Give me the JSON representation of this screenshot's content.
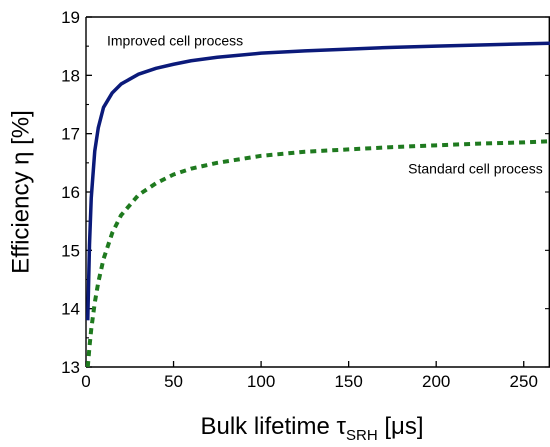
{
  "chart_data": {
    "type": "line",
    "xlabel": "Bulk lifetime τSRH [μs]",
    "ylabel": "Efficiency η [%]",
    "xlabel_parts": {
      "main": "Bulk lifetime τ",
      "subscript": "SRH",
      "unit": " [μs]"
    },
    "xlim": [
      0,
      265
    ],
    "ylim": [
      13,
      19
    ],
    "x_ticks": [
      0,
      50,
      100,
      150,
      200,
      250
    ],
    "y_ticks": [
      13,
      14,
      15,
      16,
      17,
      18,
      19
    ],
    "grid": false,
    "series": [
      {
        "name": "Improved cell process",
        "style": "solid",
        "color": "#0b1a7a",
        "x": [
          1,
          2,
          3,
          5,
          7,
          10,
          15,
          20,
          30,
          40,
          50,
          60,
          75,
          100,
          125,
          150,
          175,
          200,
          225,
          250,
          265
        ],
        "y": [
          13.8,
          15.1,
          15.9,
          16.7,
          17.1,
          17.45,
          17.7,
          17.85,
          18.02,
          18.12,
          18.19,
          18.25,
          18.31,
          18.38,
          18.42,
          18.45,
          18.48,
          18.5,
          18.52,
          18.54,
          18.55
        ]
      },
      {
        "name": "Standard cell process",
        "style": "dotted",
        "color": "#1f7a1f",
        "x": [
          1,
          2,
          3,
          5,
          7,
          10,
          15,
          20,
          30,
          40,
          50,
          60,
          75,
          100,
          125,
          150,
          175,
          200,
          225,
          250,
          265
        ],
        "y": [
          13.0,
          13.35,
          13.65,
          14.1,
          14.45,
          14.85,
          15.3,
          15.6,
          15.95,
          16.15,
          16.3,
          16.4,
          16.5,
          16.62,
          16.69,
          16.73,
          16.77,
          16.8,
          16.83,
          16.85,
          16.87
        ]
      }
    ],
    "annotations": [
      {
        "text": "Improved cell process",
        "x": 12,
        "y": 18.6
      },
      {
        "text": "Standard cell process",
        "x": 184,
        "y": 16.4
      }
    ]
  }
}
